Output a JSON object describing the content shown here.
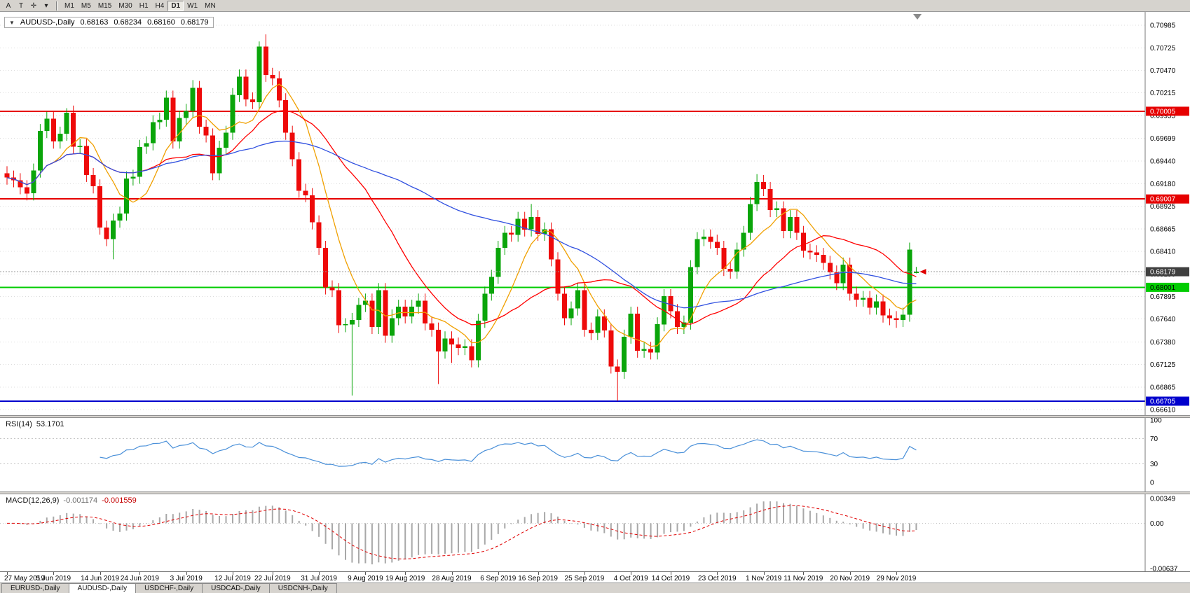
{
  "toolbar": {
    "tools": [
      "A",
      "T",
      "✛",
      "▾"
    ],
    "timeframes": [
      "M1",
      "M5",
      "M15",
      "M30",
      "H1",
      "H4",
      "D1",
      "W1",
      "MN"
    ],
    "active_timeframe": "D1"
  },
  "chart_header": {
    "collapse_icon": "▼",
    "title": "AUDUSD-,Daily",
    "open": "0.68163",
    "high": "0.68234",
    "low": "0.68160",
    "close": "0.68179"
  },
  "tabs": [
    {
      "label": "EURUSD-,Daily",
      "active": false
    },
    {
      "label": "AUDUSD-,Daily",
      "active": true
    },
    {
      "label": "USDCHF-,Daily",
      "active": false
    },
    {
      "label": "USDCAD-,Daily",
      "active": false
    },
    {
      "label": "USDCNH-,Daily",
      "active": false
    }
  ],
  "chart_data": {
    "type": "candlestick",
    "symbol": "AUDUSD-,Daily",
    "timeframe": "Daily",
    "ohlc_display": {
      "open": "0.68163",
      "high": "0.68234",
      "low": "0.68160",
      "close": "0.68179"
    },
    "style": {
      "up": "#0aa50a",
      "down": "#ee0a0a",
      "grid": "#dcdcdc"
    },
    "y_ticks": [
      "0.70985",
      "0.70725",
      "0.70470",
      "0.70215",
      "0.69955",
      "0.69699",
      "0.69440",
      "0.69180",
      "0.68925",
      "0.68665",
      "0.68410",
      "0.68150",
      "0.67895",
      "0.67640",
      "0.67380",
      "0.67125",
      "0.66865",
      "0.66610"
    ],
    "y_range": [
      0.66546,
      0.71136
    ],
    "hlines": [
      {
        "price": 0.70005,
        "label": "0.70005",
        "color": "#e60000",
        "text": "#ffffff"
      },
      {
        "price": 0.69007,
        "label": "0.69007",
        "color": "#e60000",
        "text": "#ffffff"
      },
      {
        "price": 0.68001,
        "label": "0.68001",
        "color": "#00cc00",
        "text": "#000000"
      },
      {
        "price": 0.66705,
        "label": "0.66705",
        "color": "#0000cd",
        "text": "#ffffff"
      }
    ],
    "current_price": {
      "value": 0.68179,
      "label": "0.68179",
      "bg": "#3f3f3f"
    },
    "moving_averages": [
      {
        "period": 8,
        "color": "#f0a000"
      },
      {
        "period": 21,
        "color": "#ff0000"
      },
      {
        "period": 55,
        "color": "#3050e0"
      }
    ],
    "rsi": {
      "label": "RSI(14)",
      "value_text": "53.1701",
      "period": 14,
      "color": "#4a90d9",
      "levels": [
        30,
        70
      ],
      "ticks": [
        "100",
        "70",
        "30",
        "0"
      ]
    },
    "macd": {
      "label": "MACD(12,26,9)",
      "value_text": "-0.001174",
      "signal_text": "-0.001559",
      "fast": 12,
      "slow": 26,
      "signal": 9,
      "ticks": [
        "0.00349",
        "0.00",
        "-0.00637"
      ],
      "range": [
        -0.00637,
        0.00349
      ],
      "histogram_color": "#a8a8a8",
      "signal_color": "#e00000"
    },
    "date_labels": [
      {
        "index": 0,
        "label": "27 May 2019"
      },
      {
        "index": 7,
        "label": "5 Jun 2019"
      },
      {
        "index": 14,
        "label": "14 Jun 2019"
      },
      {
        "index": 20,
        "label": "24 Jun 2019"
      },
      {
        "index": 27,
        "label": "3 Jul 2019"
      },
      {
        "index": 34,
        "label": "12 Jul 2019"
      },
      {
        "index": 40,
        "label": "22 Jul 2019"
      },
      {
        "index": 47,
        "label": "31 Jul 2019"
      },
      {
        "index": 54,
        "label": "9 Aug 2019"
      },
      {
        "index": 60,
        "label": "19 Aug 2019"
      },
      {
        "index": 67,
        "label": "28 Aug 2019"
      },
      {
        "index": 74,
        "label": "6 Sep 2019"
      },
      {
        "index": 80,
        "label": "16 Sep 2019"
      },
      {
        "index": 87,
        "label": "25 Sep 2019"
      },
      {
        "index": 94,
        "label": "4 Oct 2019"
      },
      {
        "index": 100,
        "label": "14 Oct 2019"
      },
      {
        "index": 107,
        "label": "23 Oct 2019"
      },
      {
        "index": 114,
        "label": "1 Nov 2019"
      },
      {
        "index": 120,
        "label": "11 Nov 2019"
      },
      {
        "index": 127,
        "label": "20 Nov 2019"
      },
      {
        "index": 134,
        "label": "29 Nov 2019"
      }
    ],
    "candles": [
      [
        0.693,
        0.6938,
        0.6917,
        0.6925
      ],
      [
        0.6925,
        0.6933,
        0.6914,
        0.6922
      ],
      [
        0.6922,
        0.693,
        0.6906,
        0.6914
      ],
      [
        0.6914,
        0.6922,
        0.6899,
        0.6907
      ],
      [
        0.6907,
        0.6941,
        0.6899,
        0.6933
      ],
      [
        0.6933,
        0.6986,
        0.6925,
        0.6978
      ],
      [
        0.6978,
        0.7,
        0.697,
        0.6992
      ],
      [
        0.6992,
        0.7,
        0.6958,
        0.6966
      ],
      [
        0.6966,
        0.6983,
        0.6958,
        0.6975
      ],
      [
        0.6975,
        0.7004,
        0.6967,
        0.6999
      ],
      [
        0.6999,
        0.7007,
        0.6952,
        0.696
      ],
      [
        0.696,
        0.6969,
        0.6952,
        0.6961
      ],
      [
        0.6961,
        0.6969,
        0.692,
        0.6928
      ],
      [
        0.6928,
        0.6936,
        0.6907,
        0.6915
      ],
      [
        0.6915,
        0.6923,
        0.686,
        0.6868
      ],
      [
        0.6868,
        0.6876,
        0.6847,
        0.6855
      ],
      [
        0.6855,
        0.6884,
        0.6832,
        0.6876
      ],
      [
        0.6876,
        0.6892,
        0.6868,
        0.6884
      ],
      [
        0.6884,
        0.6932,
        0.6876,
        0.6924
      ],
      [
        0.6924,
        0.6934,
        0.6916,
        0.6926
      ],
      [
        0.6926,
        0.6968,
        0.6918,
        0.696
      ],
      [
        0.696,
        0.6972,
        0.6952,
        0.6964
      ],
      [
        0.6964,
        0.6996,
        0.6956,
        0.6988
      ],
      [
        0.6988,
        0.6999,
        0.698,
        0.6991
      ],
      [
        0.6991,
        0.7024,
        0.6983,
        0.7016
      ],
      [
        0.7016,
        0.7024,
        0.6958,
        0.6966
      ],
      [
        0.6966,
        0.7001,
        0.6958,
        0.6993
      ],
      [
        0.6993,
        0.7009,
        0.6985,
        0.7001
      ],
      [
        0.7001,
        0.7036,
        0.6993,
        0.7027
      ],
      [
        0.7027,
        0.7035,
        0.6975,
        0.6983
      ],
      [
        0.6983,
        0.6991,
        0.6965,
        0.6973
      ],
      [
        0.6973,
        0.6981,
        0.6922,
        0.693
      ],
      [
        0.693,
        0.6967,
        0.6922,
        0.6959
      ],
      [
        0.6959,
        0.6984,
        0.6951,
        0.6976
      ],
      [
        0.6976,
        0.7027,
        0.6968,
        0.7019
      ],
      [
        0.7019,
        0.7048,
        0.7011,
        0.704
      ],
      [
        0.704,
        0.7048,
        0.7006,
        0.7014
      ],
      [
        0.7014,
        0.7022,
        0.7003,
        0.7011
      ],
      [
        0.7011,
        0.708,
        0.7003,
        0.7074
      ],
      [
        0.7074,
        0.7088,
        0.7034,
        0.7042
      ],
      [
        0.7042,
        0.705,
        0.703,
        0.7038
      ],
      [
        0.7038,
        0.7046,
        0.7005,
        0.7013
      ],
      [
        0.7013,
        0.7021,
        0.6968,
        0.6976
      ],
      [
        0.6976,
        0.6984,
        0.6938,
        0.6946
      ],
      [
        0.6946,
        0.6954,
        0.6902,
        0.691
      ],
      [
        0.691,
        0.6918,
        0.6897,
        0.6905
      ],
      [
        0.6905,
        0.6913,
        0.6866,
        0.6874
      ],
      [
        0.6874,
        0.6882,
        0.6837,
        0.6845
      ],
      [
        0.6845,
        0.6853,
        0.6792,
        0.68
      ],
      [
        0.68,
        0.6808,
        0.6789,
        0.6797
      ],
      [
        0.6797,
        0.6805,
        0.6748,
        0.6757
      ],
      [
        0.6757,
        0.6765,
        0.6749,
        0.6758
      ],
      [
        0.6758,
        0.6771,
        0.6677,
        0.6763
      ],
      [
        0.6763,
        0.6788,
        0.6755,
        0.678
      ],
      [
        0.678,
        0.6793,
        0.6772,
        0.6785
      ],
      [
        0.6785,
        0.6793,
        0.6747,
        0.6755
      ],
      [
        0.6755,
        0.6805,
        0.6747,
        0.6797
      ],
      [
        0.6797,
        0.6805,
        0.6737,
        0.6745
      ],
      [
        0.6745,
        0.6775,
        0.6737,
        0.6765
      ],
      [
        0.6765,
        0.6786,
        0.6757,
        0.6778
      ],
      [
        0.6778,
        0.6786,
        0.6759,
        0.6767
      ],
      [
        0.6767,
        0.6786,
        0.6759,
        0.6778
      ],
      [
        0.6778,
        0.6793,
        0.677,
        0.6785
      ],
      [
        0.6785,
        0.6793,
        0.6751,
        0.6759
      ],
      [
        0.6759,
        0.6767,
        0.6744,
        0.6752
      ],
      [
        0.6752,
        0.676,
        0.669,
        0.6727
      ],
      [
        0.6727,
        0.675,
        0.6719,
        0.6742
      ],
      [
        0.6742,
        0.675,
        0.6714,
        0.6735
      ],
      [
        0.6735,
        0.6743,
        0.6723,
        0.6731
      ],
      [
        0.6731,
        0.6741,
        0.6723,
        0.6733
      ],
      [
        0.6733,
        0.6741,
        0.6709,
        0.6717
      ],
      [
        0.6717,
        0.677,
        0.6709,
        0.6762
      ],
      [
        0.6762,
        0.6801,
        0.6754,
        0.6793
      ],
      [
        0.6793,
        0.682,
        0.6785,
        0.6812
      ],
      [
        0.6812,
        0.6853,
        0.6804,
        0.6845
      ],
      [
        0.6845,
        0.687,
        0.6837,
        0.6862
      ],
      [
        0.6862,
        0.687,
        0.6852,
        0.686
      ],
      [
        0.686,
        0.6886,
        0.6852,
        0.6878
      ],
      [
        0.6878,
        0.6886,
        0.6858,
        0.6866
      ],
      [
        0.6866,
        0.6895,
        0.6858,
        0.688
      ],
      [
        0.688,
        0.6888,
        0.6853,
        0.6861
      ],
      [
        0.6861,
        0.6874,
        0.6853,
        0.6866
      ],
      [
        0.6866,
        0.6874,
        0.6824,
        0.6832
      ],
      [
        0.6832,
        0.684,
        0.6785,
        0.6793
      ],
      [
        0.6793,
        0.6801,
        0.6757,
        0.6765
      ],
      [
        0.6765,
        0.6784,
        0.6757,
        0.6776
      ],
      [
        0.6776,
        0.6805,
        0.6768,
        0.6797
      ],
      [
        0.6797,
        0.6805,
        0.6744,
        0.6752
      ],
      [
        0.6752,
        0.676,
        0.674,
        0.6748
      ],
      [
        0.6748,
        0.6775,
        0.674,
        0.6767
      ],
      [
        0.6767,
        0.6775,
        0.6743,
        0.6751
      ],
      [
        0.6751,
        0.6759,
        0.6702,
        0.671
      ],
      [
        0.671,
        0.6718,
        0.6671,
        0.6704
      ],
      [
        0.6704,
        0.6752,
        0.6696,
        0.6744
      ],
      [
        0.6744,
        0.6778,
        0.6736,
        0.677
      ],
      [
        0.677,
        0.6778,
        0.672,
        0.6728
      ],
      [
        0.6728,
        0.6738,
        0.672,
        0.673
      ],
      [
        0.673,
        0.6738,
        0.6718,
        0.6726
      ],
      [
        0.6726,
        0.6766,
        0.6718,
        0.6758
      ],
      [
        0.6758,
        0.6798,
        0.675,
        0.679
      ],
      [
        0.679,
        0.6798,
        0.6765,
        0.6773
      ],
      [
        0.6773,
        0.6781,
        0.6747,
        0.6755
      ],
      [
        0.6755,
        0.6768,
        0.6747,
        0.676
      ],
      [
        0.676,
        0.6831,
        0.6752,
        0.6823
      ],
      [
        0.6823,
        0.6863,
        0.6815,
        0.6855
      ],
      [
        0.6855,
        0.6866,
        0.6847,
        0.6858
      ],
      [
        0.6858,
        0.6866,
        0.6844,
        0.6852
      ],
      [
        0.6852,
        0.686,
        0.6837,
        0.6845
      ],
      [
        0.6845,
        0.6853,
        0.6813,
        0.6821
      ],
      [
        0.6821,
        0.6829,
        0.681,
        0.6818
      ],
      [
        0.6818,
        0.6851,
        0.681,
        0.6843
      ],
      [
        0.6843,
        0.687,
        0.6835,
        0.6862
      ],
      [
        0.6862,
        0.6903,
        0.6854,
        0.6895
      ],
      [
        0.6895,
        0.6929,
        0.6887,
        0.692
      ],
      [
        0.692,
        0.6928,
        0.6904,
        0.6912
      ],
      [
        0.6912,
        0.692,
        0.688,
        0.6888
      ],
      [
        0.6888,
        0.6898,
        0.688,
        0.689
      ],
      [
        0.689,
        0.6898,
        0.6856,
        0.6864
      ],
      [
        0.6864,
        0.6888,
        0.6856,
        0.688
      ],
      [
        0.688,
        0.6888,
        0.6854,
        0.6862
      ],
      [
        0.6862,
        0.687,
        0.6834,
        0.6842
      ],
      [
        0.6842,
        0.685,
        0.6832,
        0.684
      ],
      [
        0.684,
        0.6848,
        0.6829,
        0.6837
      ],
      [
        0.6837,
        0.6845,
        0.682,
        0.6828
      ],
      [
        0.6828,
        0.6836,
        0.6809,
        0.6817
      ],
      [
        0.6817,
        0.6825,
        0.6797,
        0.6805
      ],
      [
        0.6805,
        0.6834,
        0.6797,
        0.6826
      ],
      [
        0.6826,
        0.6834,
        0.6785,
        0.6793
      ],
      [
        0.6793,
        0.6801,
        0.6778,
        0.6786
      ],
      [
        0.6786,
        0.6796,
        0.6778,
        0.6788
      ],
      [
        0.6788,
        0.6796,
        0.6769,
        0.6777
      ],
      [
        0.6777,
        0.6792,
        0.6769,
        0.6784
      ],
      [
        0.6784,
        0.6792,
        0.676,
        0.6768
      ],
      [
        0.6768,
        0.6776,
        0.6757,
        0.6765
      ],
      [
        0.6765,
        0.6773,
        0.6754,
        0.6763
      ],
      [
        0.6763,
        0.6777,
        0.6755,
        0.6769
      ],
      [
        0.6769,
        0.6851,
        0.6761,
        0.6843
      ],
      [
        0.68163,
        0.68234,
        0.6816,
        0.68179
      ]
    ]
  }
}
